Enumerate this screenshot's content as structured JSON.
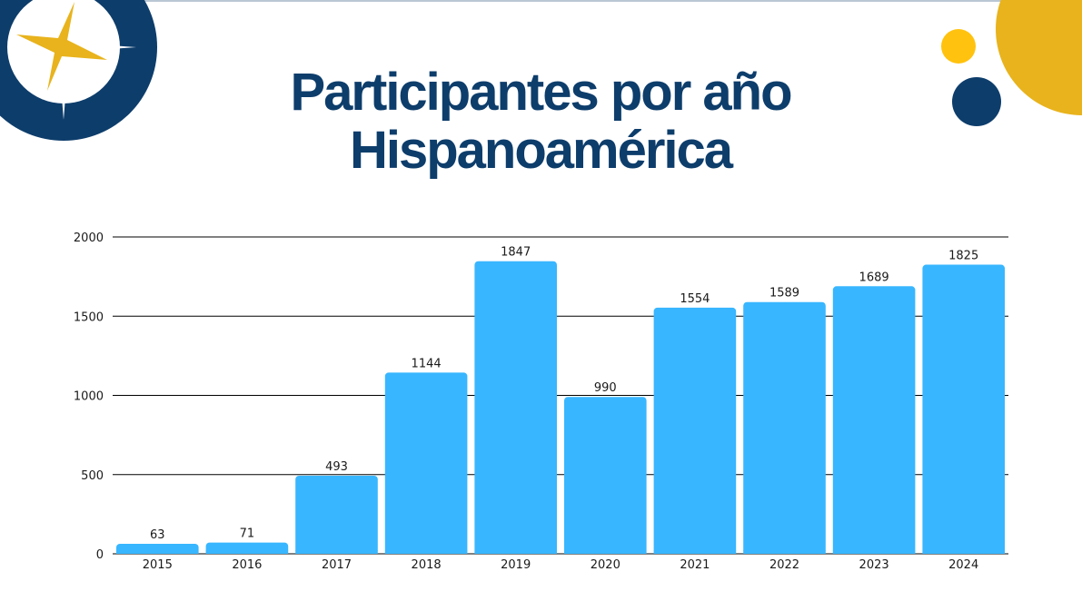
{
  "title": {
    "line1": "Participantes por año",
    "line2": "Hispanoamérica"
  },
  "colors": {
    "title": "#0d3d6b",
    "bar": "#38b6ff",
    "navy": "#0d3d6b",
    "gold": "#e8b31c",
    "gold_light": "#ffc20e",
    "grid": "#000000"
  },
  "logo": {
    "icon": "compass-star-icon"
  },
  "chart_data": {
    "type": "bar",
    "title": "Participantes por año Hispanoamérica",
    "xlabel": "",
    "ylabel": "",
    "categories": [
      "2015",
      "2016",
      "2017",
      "2018",
      "2019",
      "2020",
      "2021",
      "2022",
      "2023",
      "2024"
    ],
    "values": [
      63,
      71,
      493,
      1144,
      1847,
      990,
      1554,
      1589,
      1689,
      1825
    ],
    "ylim": [
      0,
      2000
    ],
    "yticks": [
      0,
      500,
      1000,
      1500,
      2000
    ],
    "grid": true,
    "data_labels": true,
    "legend": "none"
  }
}
